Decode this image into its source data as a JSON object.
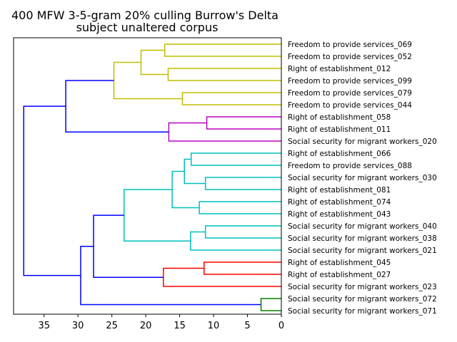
{
  "title_line1": "400 MFW 3-5-gram 20% culling Burrow's Delta",
  "title_line2": "subject unaltered corpus",
  "colors": {
    "yellow": "#bfbf00",
    "magenta": "#bf00bf",
    "cyan": "#00bfbf",
    "red": "#ff0000",
    "green": "#008000",
    "blue": "#0000ff"
  },
  "x_axis": {
    "ticks": [
      "35",
      "30",
      "25",
      "20",
      "15",
      "10",
      "5",
      "0"
    ],
    "values": [
      35,
      30,
      25,
      20,
      15,
      10,
      5,
      0
    ],
    "range": [
      39.5,
      0
    ]
  },
  "leaves": [
    "Freedom to provide services_069",
    "Freedom to provide services_052",
    "Right of establishment_012",
    "Freedom to provide services_099",
    "Freedom to provide services_079",
    "Freedom to provide services_044",
    "Right of establishment_058",
    "Right of establishment_011",
    "Social security for migrant workers_020",
    "Right of establishment_066",
    "Freedom to provide services_088",
    "Social security for migrant workers_030",
    "Right of establishment_081",
    "Right of establishment_074",
    "Right of establishment_043",
    "Social security for migrant workers_040",
    "Social security for migrant workers_038",
    "Social security for migrant workers_021",
    "Right of establishment_045",
    "Right of establishment_027",
    "Social security for migrant workers_023",
    "Social security for migrant workers_072",
    "Social security for migrant workers_071"
  ],
  "merges": [
    {
      "a": 0,
      "b": 1,
      "h": 17.2,
      "c": "yellow"
    },
    {
      "a": 2,
      "b": 3,
      "h": 16.7,
      "c": "yellow"
    },
    {
      "a": 4,
      "b": 5,
      "h": 14.6,
      "c": "yellow"
    },
    {
      "a": "m0",
      "b": "m1",
      "h": 20.7,
      "c": "yellow"
    },
    {
      "a": "m3",
      "b": "m2",
      "h": 24.7,
      "c": "yellow"
    },
    {
      "a": 6,
      "b": 7,
      "h": 11.0,
      "c": "magenta"
    },
    {
      "a": "m5",
      "b": 8,
      "h": 16.6,
      "c": "magenta"
    },
    {
      "a": "m4",
      "b": "m6",
      "h": 31.8,
      "c": "blue"
    },
    {
      "a": 9,
      "b": 10,
      "h": 13.3,
      "c": "cyan"
    },
    {
      "a": 11,
      "b": 12,
      "h": 11.2,
      "c": "cyan"
    },
    {
      "a": "m8",
      "b": "m9",
      "h": 14.3,
      "c": "cyan"
    },
    {
      "a": 13,
      "b": 14,
      "h": 12.1,
      "c": "cyan"
    },
    {
      "a": "m10",
      "b": "m11",
      "h": 16.1,
      "c": "cyan"
    },
    {
      "a": 15,
      "b": 16,
      "h": 11.2,
      "c": "cyan"
    },
    {
      "a": "m13",
      "b": 17,
      "h": 13.4,
      "c": "cyan"
    },
    {
      "a": "m12",
      "b": "m14",
      "h": 23.2,
      "c": "cyan"
    },
    {
      "a": 18,
      "b": 19,
      "h": 11.4,
      "c": "red"
    },
    {
      "a": "m16",
      "b": 20,
      "h": 17.4,
      "c": "red"
    },
    {
      "a": "m15",
      "b": "m17",
      "h": 27.7,
      "c": "blue"
    },
    {
      "a": 21,
      "b": 22,
      "h": 3.0,
      "c": "green"
    },
    {
      "a": "m18",
      "b": "m19",
      "h": 29.6,
      "c": "blue"
    },
    {
      "a": "m7",
      "b": "m20",
      "h": 38.0,
      "c": "blue"
    }
  ]
}
